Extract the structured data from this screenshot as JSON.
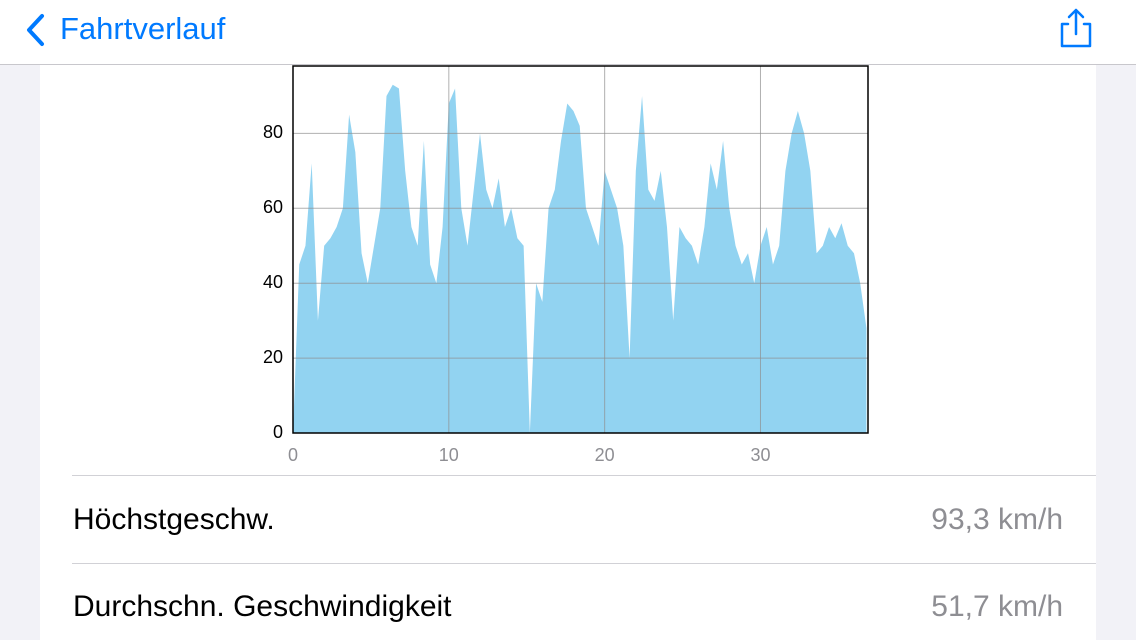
{
  "nav": {
    "back_label": "Fahrtverlauf"
  },
  "chart_data": {
    "type": "area",
    "color": "#92d3f1",
    "x": [
      0.0,
      0.4,
      0.8,
      1.2,
      1.6,
      2.0,
      2.4,
      2.8,
      3.2,
      3.6,
      4.0,
      4.4,
      4.8,
      5.2,
      5.6,
      6.0,
      6.4,
      6.8,
      7.2,
      7.6,
      8.0,
      8.4,
      8.8,
      9.2,
      9.6,
      10.0,
      10.4,
      10.8,
      11.2,
      11.6,
      12.0,
      12.4,
      12.8,
      13.2,
      13.6,
      14.0,
      14.4,
      14.8,
      15.2,
      15.6,
      16.0,
      16.4,
      16.8,
      17.2,
      17.6,
      18.0,
      18.4,
      18.8,
      19.2,
      19.6,
      20.0,
      20.4,
      20.8,
      21.2,
      21.6,
      22.0,
      22.4,
      22.8,
      23.2,
      23.6,
      24.0,
      24.4,
      24.8,
      25.2,
      25.6,
      26.0,
      26.4,
      26.8,
      27.2,
      27.6,
      28.0,
      28.4,
      28.8,
      29.2,
      29.6,
      30.0,
      30.4,
      30.8,
      31.2,
      31.6,
      32.0,
      32.4,
      32.8,
      33.2,
      33.6,
      34.0,
      34.4,
      34.8,
      35.2,
      35.6,
      36.0,
      36.4,
      36.8
    ],
    "values": [
      0,
      45,
      50,
      72,
      30,
      50,
      52,
      55,
      60,
      85,
      75,
      48,
      40,
      50,
      60,
      90,
      93,
      92,
      70,
      55,
      50,
      78,
      45,
      40,
      55,
      88,
      92,
      60,
      50,
      65,
      80,
      65,
      60,
      68,
      55,
      60,
      52,
      50,
      0,
      40,
      35,
      60,
      65,
      78,
      88,
      86,
      82,
      60,
      55,
      50,
      70,
      65,
      60,
      50,
      20,
      70,
      90,
      65,
      62,
      70,
      55,
      30,
      55,
      52,
      50,
      45,
      55,
      72,
      65,
      78,
      60,
      50,
      45,
      48,
      40,
      50,
      55,
      45,
      50,
      70,
      80,
      86,
      80,
      70,
      48,
      50,
      55,
      52,
      56,
      50,
      48,
      40,
      28
    ],
    "xlim": [
      0,
      36.9
    ],
    "ylim": [
      0,
      98
    ],
    "xticks": [
      0,
      10,
      20,
      30
    ],
    "yticks": [
      0,
      20,
      40,
      60,
      80
    ],
    "grid": true
  },
  "stats": [
    {
      "label": "Höchstgeschw.",
      "value": "93,3 km/h"
    },
    {
      "label": "Durchschn. Geschwindigkeit",
      "value": "51,7 km/h"
    }
  ]
}
